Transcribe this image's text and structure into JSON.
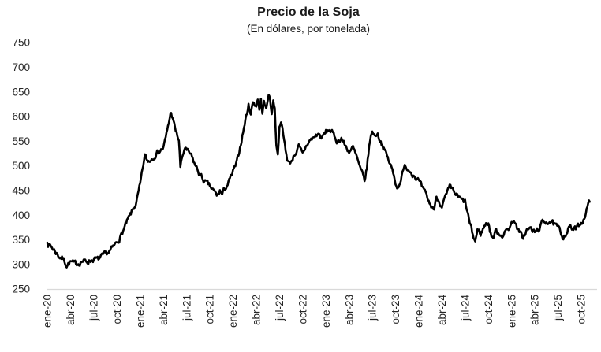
{
  "chart_data": {
    "type": "line",
    "title": "Precio de la Soja",
    "subtitle": "(En dólares, por tonelada)",
    "xlabel": "",
    "ylabel": "",
    "legend": "none",
    "grid": "off",
    "ylim": [
      250,
      750
    ],
    "ytick_step": 50,
    "yticks": [
      250,
      300,
      350,
      400,
      450,
      500,
      550,
      600,
      650,
      700,
      750
    ],
    "xticklabels": [
      "ene-20",
      "abr-20",
      "jul-20",
      "oct-20",
      "ene-21",
      "abr-21",
      "jul-21",
      "oct-21",
      "ene-22",
      "abr-22",
      "jul-22",
      "oct-22",
      "ene-23",
      "abr-23",
      "jul-23",
      "oct-23",
      "ene-24",
      "abr-24",
      "jul-24",
      "oct-24",
      "ene-25",
      "abr-25",
      "jul-25",
      "oct-25"
    ],
    "months_per_xtick": 3,
    "x_axis_note": "monthly index, 0 = ene-20, series ends nov-25",
    "series": [
      {
        "name": "Precio de la soja (USD por tonelada)",
        "points": [
          [
            0,
            344
          ],
          [
            0.5,
            336
          ],
          [
            1,
            327
          ],
          [
            1.5,
            317
          ],
          [
            2,
            312
          ],
          [
            2.5,
            299
          ],
          [
            3,
            305
          ],
          [
            3.5,
            300
          ],
          [
            4,
            303
          ],
          [
            4.5,
            307
          ],
          [
            5,
            305
          ],
          [
            5.5,
            308
          ],
          [
            6,
            311
          ],
          [
            6.5,
            309
          ],
          [
            7,
            314
          ],
          [
            7.5,
            319
          ],
          [
            8,
            326
          ],
          [
            8.5,
            333
          ],
          [
            9,
            345
          ],
          [
            9.5,
            358
          ],
          [
            10,
            375
          ],
          [
            10.5,
            392
          ],
          [
            11,
            408
          ],
          [
            11.5,
            425
          ],
          [
            12,
            460
          ],
          [
            12.3,
            490
          ],
          [
            12.6,
            520
          ],
          [
            13,
            508
          ],
          [
            13.5,
            515
          ],
          [
            14,
            525
          ],
          [
            14.5,
            530
          ],
          [
            15,
            536
          ],
          [
            15.3,
            555
          ],
          [
            15.6,
            580
          ],
          [
            16,
            610
          ],
          [
            16.3,
            588
          ],
          [
            16.6,
            570
          ],
          [
            17,
            552
          ],
          [
            17.2,
            497
          ],
          [
            17.5,
            520
          ],
          [
            17.8,
            538
          ],
          [
            18,
            530
          ],
          [
            18.5,
            522
          ],
          [
            19,
            505
          ],
          [
            19.5,
            488
          ],
          [
            20,
            475
          ],
          [
            20.5,
            465
          ],
          [
            21,
            458
          ],
          [
            21.5,
            448
          ],
          [
            22,
            438
          ],
          [
            22.3,
            450
          ],
          [
            22.6,
            441
          ],
          [
            23,
            455
          ],
          [
            23.5,
            468
          ],
          [
            24,
            487
          ],
          [
            24.5,
            505
          ],
          [
            25,
            545
          ],
          [
            25.5,
            585
          ],
          [
            26,
            622
          ],
          [
            26.3,
            608
          ],
          [
            26.6,
            630
          ],
          [
            27,
            622
          ],
          [
            27.2,
            638
          ],
          [
            27.4,
            615
          ],
          [
            27.6,
            632
          ],
          [
            27.8,
            610
          ],
          [
            28,
            628
          ],
          [
            28.3,
            613
          ],
          [
            28.6,
            650
          ],
          [
            28.8,
            630
          ],
          [
            29,
            605
          ],
          [
            29.2,
            635
          ],
          [
            29.4,
            615
          ],
          [
            29.6,
            540
          ],
          [
            29.8,
            527
          ],
          [
            30,
            578
          ],
          [
            30.2,
            595
          ],
          [
            30.5,
            560
          ],
          [
            30.8,
            532
          ],
          [
            31,
            515
          ],
          [
            31.3,
            504
          ],
          [
            31.6,
            512
          ],
          [
            32,
            525
          ],
          [
            32.5,
            538
          ],
          [
            33,
            522
          ],
          [
            33.5,
            542
          ],
          [
            34,
            552
          ],
          [
            34.5,
            558
          ],
          [
            35,
            565
          ],
          [
            35.5,
            556
          ],
          [
            36,
            568
          ],
          [
            36.5,
            574
          ],
          [
            37,
            562
          ],
          [
            37.5,
            549
          ],
          [
            38,
            557
          ],
          [
            38.5,
            540
          ],
          [
            39,
            530
          ],
          [
            39.5,
            536
          ],
          [
            40,
            516
          ],
          [
            40.5,
            490
          ],
          [
            41,
            470
          ],
          [
            41.3,
            495
          ],
          [
            41.6,
            540
          ],
          [
            42,
            573
          ],
          [
            42.3,
            560
          ],
          [
            42.6,
            567
          ],
          [
            43,
            554
          ],
          [
            43.5,
            535
          ],
          [
            44,
            515
          ],
          [
            44.5,
            495
          ],
          [
            45,
            467
          ],
          [
            45.3,
            455
          ],
          [
            45.6,
            470
          ],
          [
            46,
            488
          ],
          [
            46.3,
            500
          ],
          [
            46.6,
            494
          ],
          [
            47,
            489
          ],
          [
            47.5,
            480
          ],
          [
            48,
            469
          ],
          [
            48.5,
            452
          ],
          [
            49,
            438
          ],
          [
            49.5,
            420
          ],
          [
            50,
            413
          ],
          [
            50.3,
            437
          ],
          [
            50.6,
            429
          ],
          [
            51,
            421
          ],
          [
            51.5,
            437
          ],
          [
            52,
            455
          ],
          [
            52.5,
            447
          ],
          [
            53,
            438
          ],
          [
            53.5,
            430
          ],
          [
            54,
            426
          ],
          [
            54.3,
            405
          ],
          [
            54.6,
            383
          ],
          [
            55,
            358
          ],
          [
            55.3,
            347
          ],
          [
            55.6,
            370
          ],
          [
            56,
            362
          ],
          [
            56.5,
            378
          ],
          [
            57,
            386
          ],
          [
            57.3,
            362
          ],
          [
            57.6,
            354
          ],
          [
            58,
            368
          ],
          [
            58.5,
            362
          ],
          [
            59,
            360
          ],
          [
            59.5,
            372
          ],
          [
            60,
            382
          ],
          [
            60.3,
            394
          ],
          [
            60.6,
            377
          ],
          [
            61,
            363
          ],
          [
            61.5,
            356
          ],
          [
            62,
            370
          ],
          [
            62.5,
            372
          ],
          [
            63,
            364
          ],
          [
            63.5,
            372
          ],
          [
            64,
            384
          ],
          [
            64.5,
            388
          ],
          [
            65,
            388
          ],
          [
            65.5,
            379
          ],
          [
            66,
            374
          ],
          [
            66.3,
            365
          ],
          [
            66.6,
            357
          ],
          [
            67,
            363
          ],
          [
            67.5,
            376
          ],
          [
            68,
            370
          ],
          [
            68.5,
            374
          ],
          [
            69,
            386
          ],
          [
            69.3,
            391
          ],
          [
            69.6,
            406
          ],
          [
            69.8,
            416
          ],
          [
            70.1,
            427
          ]
        ]
      }
    ],
    "noise_amplitude": 5,
    "noise_seed": 7,
    "colors": {
      "line": "#000000",
      "axis_line": "#d9d9d9",
      "text": "#262626",
      "background": "#ffffff"
    }
  }
}
